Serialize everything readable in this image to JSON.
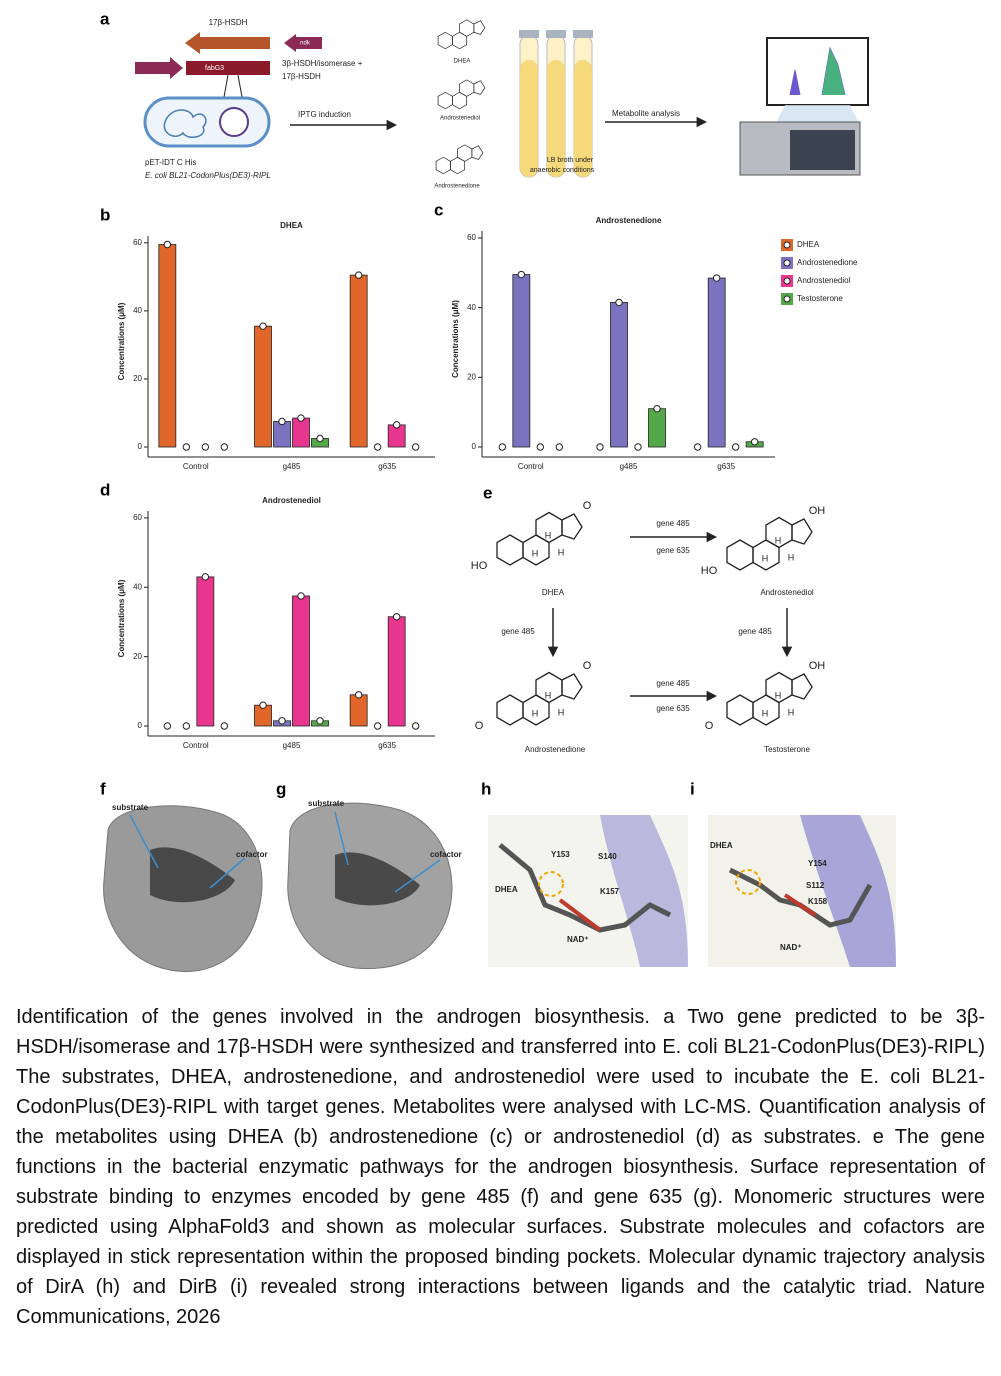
{
  "panel_a": {
    "letter": "a",
    "gene_top": "17β-HSDH",
    "gene_small": "ndk",
    "gene_box": "fabG3",
    "gene_desc": [
      "3β-HSDH/isomerase +",
      "17β-HSDH"
    ],
    "step1": "IPTG induction",
    "vector": [
      "pET-IDT C His",
      "E. coli BL21-CodonPlus(DE3)-RIPL"
    ],
    "substrates": [
      "DHEA",
      "Androstenediol",
      "Androstenedione"
    ],
    "medium": [
      "LB broth under",
      "anaerobic conditions"
    ],
    "step2": "Metabolite analysis"
  },
  "chart_data": [
    {
      "type": "bar",
      "panel": "b",
      "title": "DHEA",
      "y_label": "Concentrations (μM)",
      "categories": [
        "Control",
        "g485",
        "g635"
      ],
      "series": [
        {
          "name": "DHEA",
          "color": "#e0662a",
          "values": [
            59.5,
            35.5,
            50.5
          ]
        },
        {
          "name": "Androstenedione",
          "color": "#7b72c0",
          "values": [
            0,
            7.5,
            0
          ]
        },
        {
          "name": "Androstenediol",
          "color": "#e8368f",
          "values": [
            0,
            8.5,
            6.5
          ]
        },
        {
          "name": "Testosterone",
          "color": "#55a84a",
          "values": [
            0,
            2.5,
            0
          ]
        }
      ],
      "ylim": [
        0,
        62
      ],
      "yticks": [
        0,
        20,
        40,
        60
      ]
    },
    {
      "type": "bar",
      "panel": "c",
      "title": "Androstenedione",
      "y_label": "Concentrations (μM)",
      "categories": [
        "Control",
        "g485",
        "g635"
      ],
      "series": [
        {
          "name": "DHEA",
          "color": "#e0662a",
          "values": [
            0,
            0,
            0
          ]
        },
        {
          "name": "Androstenedione",
          "color": "#7b72c0",
          "values": [
            49.5,
            41.5,
            48.5
          ]
        },
        {
          "name": "Androstenediol",
          "color": "#e8368f",
          "values": [
            0,
            0,
            0
          ]
        },
        {
          "name": "Testosterone",
          "color": "#55a84a",
          "values": [
            0,
            11,
            1.5
          ]
        }
      ],
      "ylim": [
        0,
        62
      ],
      "yticks": [
        0,
        20,
        40,
        60
      ],
      "legend": "right"
    },
    {
      "type": "bar",
      "panel": "d",
      "title": "Androstenediol",
      "y_label": "Concentrations (μM)",
      "categories": [
        "Control",
        "g485",
        "g635"
      ],
      "series": [
        {
          "name": "DHEA",
          "color": "#e0662a",
          "values": [
            0,
            6,
            9
          ]
        },
        {
          "name": "Androstenedione",
          "color": "#7b72c0",
          "values": [
            0,
            1.5,
            0
          ]
        },
        {
          "name": "Androstenediol",
          "color": "#e8368f",
          "values": [
            43,
            37.5,
            31.5
          ]
        },
        {
          "name": "Testosterone",
          "color": "#55a84a",
          "values": [
            0,
            1.5,
            0
          ]
        }
      ],
      "ylim": [
        0,
        62
      ],
      "yticks": [
        0,
        20,
        40,
        60
      ]
    }
  ],
  "panel_e": {
    "letter": "e",
    "molecules": [
      {
        "name": "DHEA",
        "atoms": [
          "O",
          "HO",
          "H",
          "H",
          "H"
        ]
      },
      {
        "name": "Androstenediol",
        "atoms": [
          "OH",
          "HO",
          "H",
          "H",
          "H"
        ]
      },
      {
        "name": "Androstenedione",
        "atoms": [
          "O",
          "O",
          "H",
          "H",
          "H"
        ]
      },
      {
        "name": "Testosterone",
        "atoms": [
          "OH",
          "O",
          "H",
          "H",
          "H"
        ]
      }
    ],
    "arrows": [
      [
        "gene 485",
        "gene 635"
      ],
      [
        "gene 485"
      ],
      [
        "gene 485"
      ],
      [
        "gene 485",
        "gene 635"
      ]
    ]
  },
  "panels_structure": [
    {
      "letter": "f",
      "labels": [
        "substrate",
        "cofactor"
      ]
    },
    {
      "letter": "g",
      "labels": [
        "substrate",
        "cofactor"
      ]
    },
    {
      "letter": "h",
      "labels": [
        "Y153",
        "S140",
        "DHEA",
        "K157",
        "NAD⁺"
      ]
    },
    {
      "letter": "i",
      "labels": [
        "DHEA",
        "Y154",
        "S112",
        "K158",
        "NAD⁺"
      ]
    }
  ],
  "caption": "Identification of the genes involved in the androgen biosynthesis. a Two gene predicted to be 3β-HSDH/isomerase and 17β-HSDH were synthesized and transferred into E. coli BL21-CodonPlus(DE3)-RIPL) The substrates, DHEA, androstenedione, and androstenediol were used to incubate the E. coli BL21-CodonPlus(DE3)-RIPL with target genes. Metabolites were analysed with LC-MS. Quantification analysis of the metabolites using DHEA (b) androstenedione (c) or androstenediol (d) as substrates. e The gene functions in the bacterial enzymatic pathways for the androgen biosynthesis. Surface representation of substrate binding to enzymes encoded by gene 485 (f) and gene 635 (g). Monomeric structures were predicted using AlphaFold3 and shown as molecular surfaces. Substrate molecules and cofactors are displayed in stick representation within the proposed binding pockets. Molecular dynamic trajectory analysis of DirA (h) and DirB (i) revealed strong interactions between ligands and the catalytic triad. Nature Communications, 2026"
}
